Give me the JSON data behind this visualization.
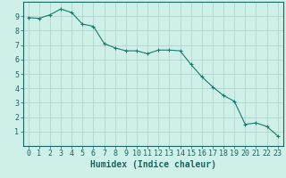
{
  "x": [
    0,
    1,
    2,
    3,
    4,
    5,
    6,
    7,
    8,
    9,
    10,
    11,
    12,
    13,
    14,
    15,
    16,
    17,
    18,
    19,
    20,
    21,
    22,
    23
  ],
  "y": [
    8.9,
    8.85,
    9.1,
    9.5,
    9.25,
    8.45,
    8.3,
    7.1,
    6.8,
    6.6,
    6.6,
    6.4,
    6.65,
    6.65,
    6.6,
    5.65,
    4.8,
    4.1,
    3.5,
    3.1,
    1.5,
    1.6,
    1.35,
    0.7
  ],
  "line_color": "#1a7a6e",
  "marker": "+",
  "markersize": 3,
  "linewidth": 0.8,
  "bg_color": "#cef0e8",
  "grid_color": "#a8cfc8",
  "axis_color": "#1a6660",
  "xlabel": "Humidex (Indice chaleur)",
  "xlabel_fontsize": 7,
  "tick_fontsize": 6,
  "xlim": [
    -0.5,
    23.5
  ],
  "ylim": [
    0,
    10
  ],
  "yticks": [
    1,
    2,
    3,
    4,
    5,
    6,
    7,
    8,
    9
  ],
  "xticks": [
    0,
    1,
    2,
    3,
    4,
    5,
    6,
    7,
    8,
    9,
    10,
    11,
    12,
    13,
    14,
    15,
    16,
    17,
    18,
    19,
    20,
    21,
    22,
    23
  ]
}
